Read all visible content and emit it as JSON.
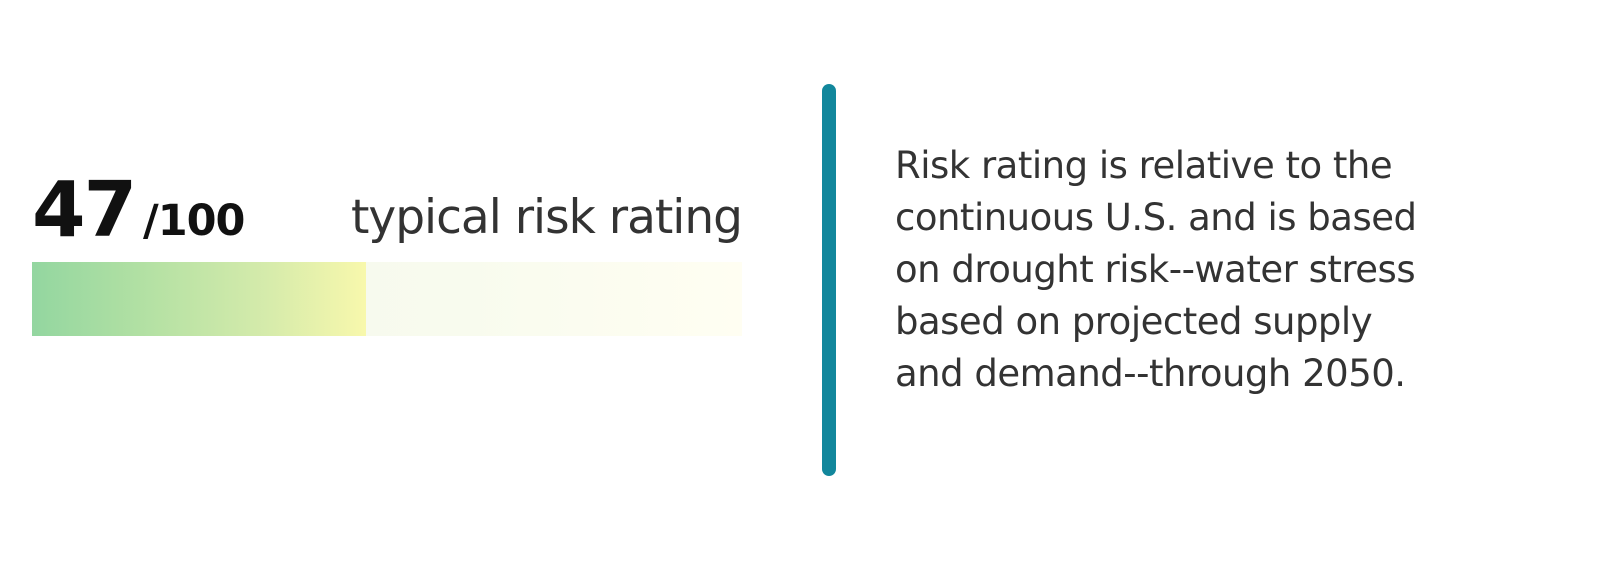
{
  "score": {
    "value": "47",
    "max_label": "/100",
    "rating_label": "typical risk rating",
    "fill_fraction": 0.47
  },
  "description": {
    "lines": [
      "Risk rating is relative to the",
      "continuous U.S. and is based",
      "on drought risk--water stress",
      "based on projected supply",
      "and demand--through 2050."
    ]
  },
  "colors": {
    "divider": "#12879c",
    "bar_fill_start": "#93d6a0",
    "bar_fill_end": "#f8f8ac"
  }
}
